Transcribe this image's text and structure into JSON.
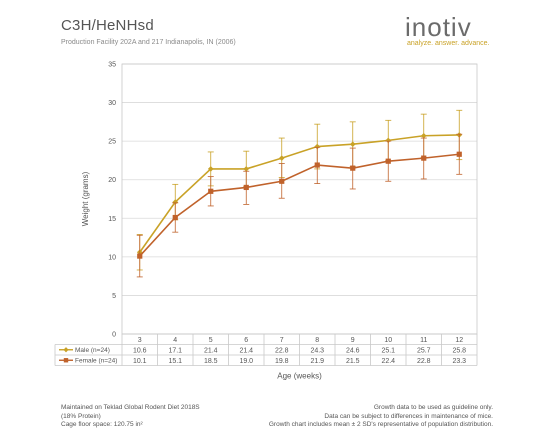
{
  "header": {
    "title": "C3H/HeNHsd",
    "subtitle": "Production Facility 202A and 217 Indianapolis, IN (2006)"
  },
  "logo": {
    "wordmark": "inotiv",
    "tagline": "analyze. answer. advance.",
    "accent_color": "#c9a227"
  },
  "chart_data": {
    "type": "line",
    "categories": [
      "3",
      "4",
      "5",
      "6",
      "7",
      "8",
      "9",
      "10",
      "11",
      "12"
    ],
    "xlabel": "Age (weeks)",
    "ylabel": "Weight (grams)",
    "ylim": [
      0,
      35
    ],
    "yticks": [
      "0",
      "5",
      "10",
      "15",
      "20",
      "25",
      "30",
      "35"
    ],
    "grid": true,
    "series": [
      {
        "name": "Male (n=24)",
        "marker": "diamond",
        "color": "#c9a227",
        "values": [
          10.6,
          17.1,
          21.4,
          21.4,
          22.8,
          24.3,
          24.6,
          25.1,
          25.7,
          25.8
        ],
        "value_labels": [
          "10.6",
          "17.1",
          "21.4",
          "21.4",
          "22.8",
          "24.3",
          "24.6",
          "25.1",
          "25.7",
          "25.8"
        ],
        "err_low": [
          8.3,
          14.8,
          19.2,
          19.1,
          20.3,
          21.4,
          21.7,
          22.5,
          22.9,
          22.6
        ],
        "err_high": [
          12.9,
          19.4,
          23.6,
          23.7,
          25.4,
          27.2,
          27.5,
          27.7,
          28.5,
          29.0
        ]
      },
      {
        "name": "Female (n=24)",
        "marker": "square",
        "color": "#c0622b",
        "values": [
          10.1,
          15.1,
          18.5,
          19.0,
          19.8,
          21.9,
          21.5,
          22.4,
          22.8,
          23.3
        ],
        "value_labels": [
          "10.1",
          "15.1",
          "18.5",
          "19.0",
          "19.8",
          "21.9",
          "21.5",
          "22.4",
          "22.8",
          "23.3"
        ],
        "err_low": [
          7.4,
          13.2,
          16.6,
          16.8,
          17.6,
          19.5,
          18.8,
          19.8,
          20.1,
          20.7
        ],
        "err_high": [
          12.8,
          17.0,
          20.4,
          21.1,
          22.1,
          24.2,
          24.1,
          25.0,
          25.4,
          25.9
        ]
      }
    ]
  },
  "footer": {
    "left": [
      "Maintained on Teklad Global Rodent Diet 2018S",
      "(18% Protein)",
      "Cage floor space: 120.75 in²"
    ],
    "right": [
      "Growth data to be used as guideline only.",
      "Data can be subject to differences in maintenance of mice.",
      "Growth chart includes mean ± 2 SD's representative of population distribution."
    ]
  }
}
